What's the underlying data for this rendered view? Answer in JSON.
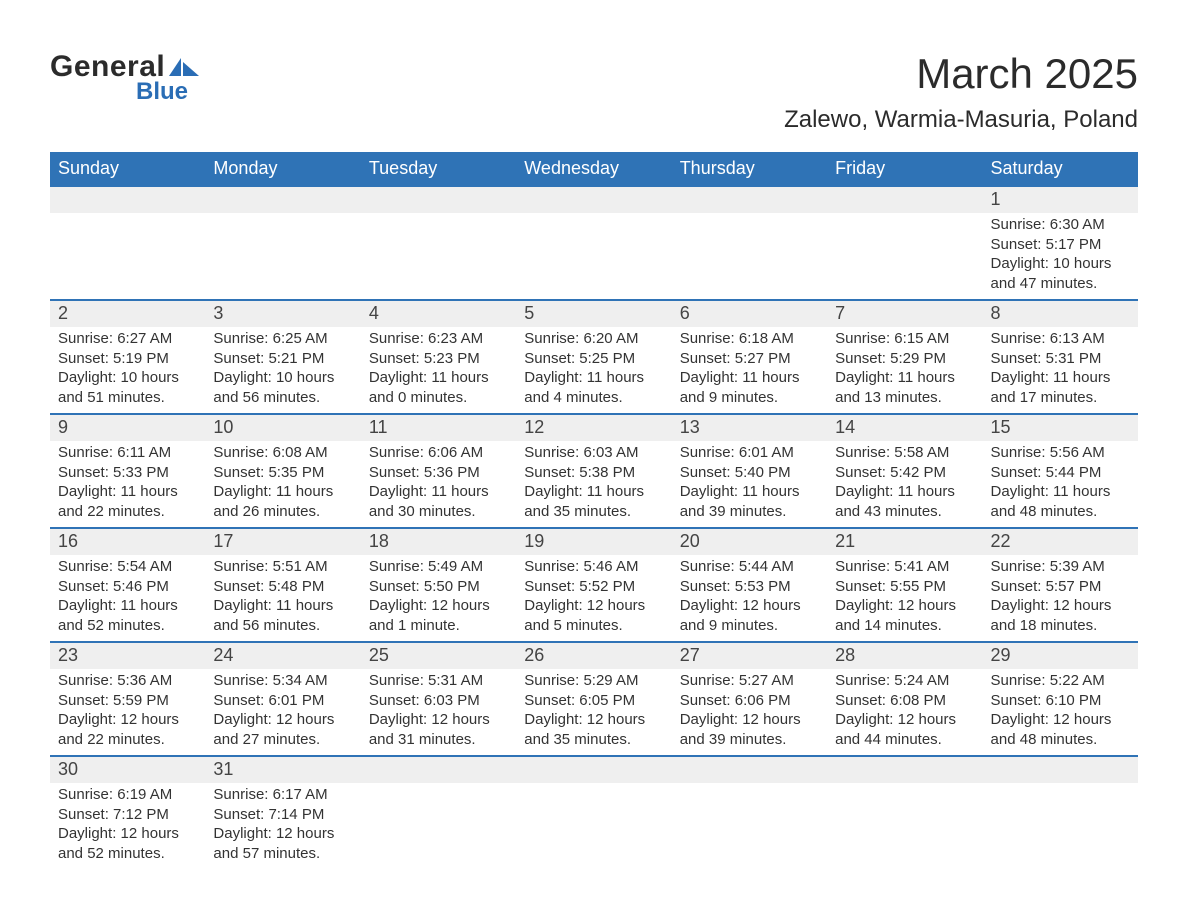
{
  "logo": {
    "primary": "General",
    "secondary": "Blue"
  },
  "title": {
    "month": "March 2025",
    "location": "Zalewo, Warmia-Masuria, Poland"
  },
  "colors": {
    "header_bg": "#2f73b6",
    "header_text": "#ffffff",
    "daynum_bg": "#efefef",
    "border": "#2f73b6",
    "text": "#333333",
    "logo_dark": "#2b2b2b",
    "logo_blue": "#2a6db5",
    "page_bg": "#ffffff"
  },
  "typography": {
    "title_month_fontsize": 42,
    "title_loc_fontsize": 24,
    "th_fontsize": 18,
    "daynum_fontsize": 18,
    "detail_fontsize": 15
  },
  "days_of_week": [
    "Sunday",
    "Monday",
    "Tuesday",
    "Wednesday",
    "Thursday",
    "Friday",
    "Saturday"
  ],
  "weeks": [
    [
      null,
      null,
      null,
      null,
      null,
      null,
      {
        "day": "1",
        "sunrise": "Sunrise: 6:30 AM",
        "sunset": "Sunset: 5:17 PM",
        "daylight1": "Daylight: 10 hours",
        "daylight2": "and 47 minutes."
      }
    ],
    [
      {
        "day": "2",
        "sunrise": "Sunrise: 6:27 AM",
        "sunset": "Sunset: 5:19 PM",
        "daylight1": "Daylight: 10 hours",
        "daylight2": "and 51 minutes."
      },
      {
        "day": "3",
        "sunrise": "Sunrise: 6:25 AM",
        "sunset": "Sunset: 5:21 PM",
        "daylight1": "Daylight: 10 hours",
        "daylight2": "and 56 minutes."
      },
      {
        "day": "4",
        "sunrise": "Sunrise: 6:23 AM",
        "sunset": "Sunset: 5:23 PM",
        "daylight1": "Daylight: 11 hours",
        "daylight2": "and 0 minutes."
      },
      {
        "day": "5",
        "sunrise": "Sunrise: 6:20 AM",
        "sunset": "Sunset: 5:25 PM",
        "daylight1": "Daylight: 11 hours",
        "daylight2": "and 4 minutes."
      },
      {
        "day": "6",
        "sunrise": "Sunrise: 6:18 AM",
        "sunset": "Sunset: 5:27 PM",
        "daylight1": "Daylight: 11 hours",
        "daylight2": "and 9 minutes."
      },
      {
        "day": "7",
        "sunrise": "Sunrise: 6:15 AM",
        "sunset": "Sunset: 5:29 PM",
        "daylight1": "Daylight: 11 hours",
        "daylight2": "and 13 minutes."
      },
      {
        "day": "8",
        "sunrise": "Sunrise: 6:13 AM",
        "sunset": "Sunset: 5:31 PM",
        "daylight1": "Daylight: 11 hours",
        "daylight2": "and 17 minutes."
      }
    ],
    [
      {
        "day": "9",
        "sunrise": "Sunrise: 6:11 AM",
        "sunset": "Sunset: 5:33 PM",
        "daylight1": "Daylight: 11 hours",
        "daylight2": "and 22 minutes."
      },
      {
        "day": "10",
        "sunrise": "Sunrise: 6:08 AM",
        "sunset": "Sunset: 5:35 PM",
        "daylight1": "Daylight: 11 hours",
        "daylight2": "and 26 minutes."
      },
      {
        "day": "11",
        "sunrise": "Sunrise: 6:06 AM",
        "sunset": "Sunset: 5:36 PM",
        "daylight1": "Daylight: 11 hours",
        "daylight2": "and 30 minutes."
      },
      {
        "day": "12",
        "sunrise": "Sunrise: 6:03 AM",
        "sunset": "Sunset: 5:38 PM",
        "daylight1": "Daylight: 11 hours",
        "daylight2": "and 35 minutes."
      },
      {
        "day": "13",
        "sunrise": "Sunrise: 6:01 AM",
        "sunset": "Sunset: 5:40 PM",
        "daylight1": "Daylight: 11 hours",
        "daylight2": "and 39 minutes."
      },
      {
        "day": "14",
        "sunrise": "Sunrise: 5:58 AM",
        "sunset": "Sunset: 5:42 PM",
        "daylight1": "Daylight: 11 hours",
        "daylight2": "and 43 minutes."
      },
      {
        "day": "15",
        "sunrise": "Sunrise: 5:56 AM",
        "sunset": "Sunset: 5:44 PM",
        "daylight1": "Daylight: 11 hours",
        "daylight2": "and 48 minutes."
      }
    ],
    [
      {
        "day": "16",
        "sunrise": "Sunrise: 5:54 AM",
        "sunset": "Sunset: 5:46 PM",
        "daylight1": "Daylight: 11 hours",
        "daylight2": "and 52 minutes."
      },
      {
        "day": "17",
        "sunrise": "Sunrise: 5:51 AM",
        "sunset": "Sunset: 5:48 PM",
        "daylight1": "Daylight: 11 hours",
        "daylight2": "and 56 minutes."
      },
      {
        "day": "18",
        "sunrise": "Sunrise: 5:49 AM",
        "sunset": "Sunset: 5:50 PM",
        "daylight1": "Daylight: 12 hours",
        "daylight2": "and 1 minute."
      },
      {
        "day": "19",
        "sunrise": "Sunrise: 5:46 AM",
        "sunset": "Sunset: 5:52 PM",
        "daylight1": "Daylight: 12 hours",
        "daylight2": "and 5 minutes."
      },
      {
        "day": "20",
        "sunrise": "Sunrise: 5:44 AM",
        "sunset": "Sunset: 5:53 PM",
        "daylight1": "Daylight: 12 hours",
        "daylight2": "and 9 minutes."
      },
      {
        "day": "21",
        "sunrise": "Sunrise: 5:41 AM",
        "sunset": "Sunset: 5:55 PM",
        "daylight1": "Daylight: 12 hours",
        "daylight2": "and 14 minutes."
      },
      {
        "day": "22",
        "sunrise": "Sunrise: 5:39 AM",
        "sunset": "Sunset: 5:57 PM",
        "daylight1": "Daylight: 12 hours",
        "daylight2": "and 18 minutes."
      }
    ],
    [
      {
        "day": "23",
        "sunrise": "Sunrise: 5:36 AM",
        "sunset": "Sunset: 5:59 PM",
        "daylight1": "Daylight: 12 hours",
        "daylight2": "and 22 minutes."
      },
      {
        "day": "24",
        "sunrise": "Sunrise: 5:34 AM",
        "sunset": "Sunset: 6:01 PM",
        "daylight1": "Daylight: 12 hours",
        "daylight2": "and 27 minutes."
      },
      {
        "day": "25",
        "sunrise": "Sunrise: 5:31 AM",
        "sunset": "Sunset: 6:03 PM",
        "daylight1": "Daylight: 12 hours",
        "daylight2": "and 31 minutes."
      },
      {
        "day": "26",
        "sunrise": "Sunrise: 5:29 AM",
        "sunset": "Sunset: 6:05 PM",
        "daylight1": "Daylight: 12 hours",
        "daylight2": "and 35 minutes."
      },
      {
        "day": "27",
        "sunrise": "Sunrise: 5:27 AM",
        "sunset": "Sunset: 6:06 PM",
        "daylight1": "Daylight: 12 hours",
        "daylight2": "and 39 minutes."
      },
      {
        "day": "28",
        "sunrise": "Sunrise: 5:24 AM",
        "sunset": "Sunset: 6:08 PM",
        "daylight1": "Daylight: 12 hours",
        "daylight2": "and 44 minutes."
      },
      {
        "day": "29",
        "sunrise": "Sunrise: 5:22 AM",
        "sunset": "Sunset: 6:10 PM",
        "daylight1": "Daylight: 12 hours",
        "daylight2": "and 48 minutes."
      }
    ],
    [
      {
        "day": "30",
        "sunrise": "Sunrise: 6:19 AM",
        "sunset": "Sunset: 7:12 PM",
        "daylight1": "Daylight: 12 hours",
        "daylight2": "and 52 minutes."
      },
      {
        "day": "31",
        "sunrise": "Sunrise: 6:17 AM",
        "sunset": "Sunset: 7:14 PM",
        "daylight1": "Daylight: 12 hours",
        "daylight2": "and 57 minutes."
      },
      null,
      null,
      null,
      null,
      null
    ]
  ]
}
